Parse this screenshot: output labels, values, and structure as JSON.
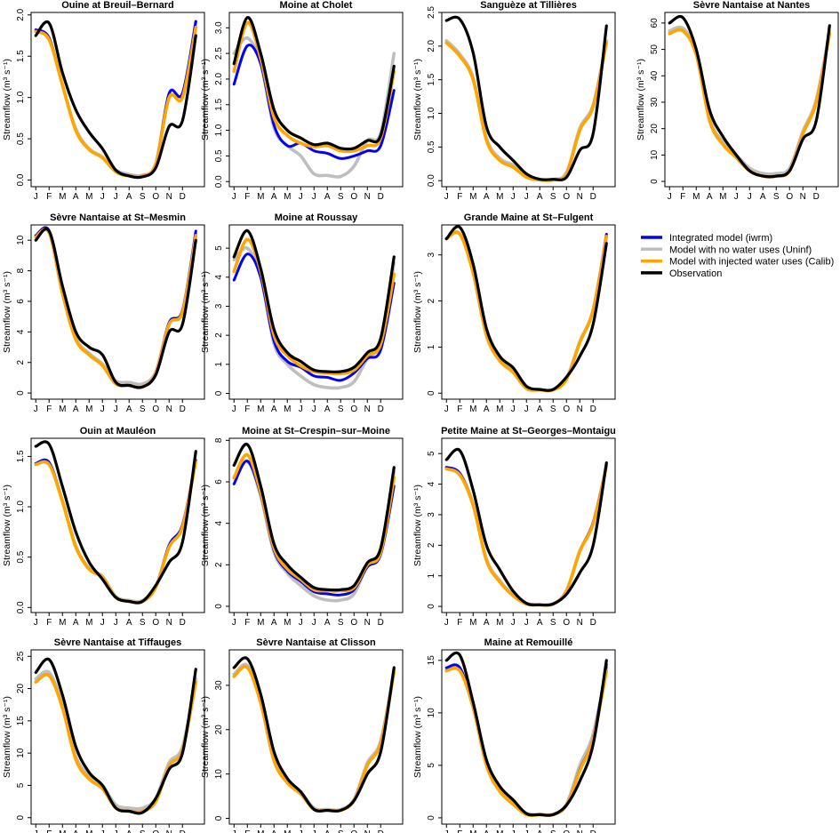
{
  "chart_data": {
    "type": "line",
    "ylabel": "Streamflow (m³ s⁻¹)",
    "xticklabels": [
      "J",
      "F",
      "M",
      "A",
      "M",
      "J",
      "J",
      "A",
      "S",
      "O",
      "N",
      "D"
    ],
    "x": [
      0,
      1,
      2,
      3,
      4,
      5,
      6,
      7,
      8,
      9,
      10,
      11,
      12
    ],
    "x_unit": "month (0 = 1 January, 12 = 31 December)",
    "legend": {
      "placement": "right, second row",
      "entries": [
        {
          "key": "iwrm",
          "label": "Integrated model (iwrm)",
          "color": "#0000ff"
        },
        {
          "key": "uninf",
          "label": "Model with no water uses (Uninf)",
          "color": "#bebebe"
        },
        {
          "key": "calib",
          "label": "Model with injected water uses (Calib)",
          "color": "#ffa500"
        },
        {
          "key": "obs",
          "label": "Observation",
          "color": "#000000"
        }
      ]
    },
    "panels": [
      {
        "title": "Ouine at Breuil–Bernard",
        "yticks": [
          0,
          0.5,
          1,
          1.5,
          2
        ],
        "ytickfmt": 1,
        "ylim": [
          -0.08,
          2.03
        ],
        "series": {
          "uninf": [
            1.82,
            1.72,
            1.15,
            0.62,
            0.38,
            0.28,
            0.12,
            0.07,
            0.06,
            0.2,
            1.05,
            1.05,
            1.92
          ],
          "iwrm": [
            1.82,
            1.72,
            1.15,
            0.6,
            0.37,
            0.27,
            0.1,
            0.05,
            0.05,
            0.2,
            1.05,
            1.05,
            1.92
          ],
          "calib": [
            1.8,
            1.7,
            1.15,
            0.6,
            0.37,
            0.27,
            0.1,
            0.05,
            0.05,
            0.2,
            1.0,
            1.0,
            1.85
          ],
          "obs": [
            1.75,
            1.9,
            1.3,
            0.85,
            0.58,
            0.38,
            0.12,
            0.05,
            0.04,
            0.15,
            0.65,
            0.72,
            1.75
          ]
        }
      },
      {
        "title": "Moine at Cholet",
        "yticks": [
          0,
          0.5,
          1,
          1.5,
          2,
          2.5,
          3
        ],
        "ytickfmt": 1,
        "ylim": [
          -0.1,
          3.3
        ],
        "series": {
          "uninf": [
            2.5,
            2.8,
            2.3,
            1.05,
            0.7,
            0.5,
            0.15,
            0.12,
            0.1,
            0.3,
            0.8,
            0.95,
            2.5
          ],
          "iwrm": [
            1.9,
            2.65,
            2.3,
            1.1,
            0.7,
            0.75,
            0.6,
            0.55,
            0.45,
            0.5,
            0.6,
            0.7,
            1.78
          ],
          "calib": [
            2.15,
            3.1,
            2.4,
            1.25,
            0.9,
            0.75,
            0.68,
            0.7,
            0.6,
            0.6,
            0.7,
            0.85,
            2.15
          ],
          "obs": [
            2.3,
            3.2,
            2.5,
            1.4,
            1.0,
            0.85,
            0.72,
            0.75,
            0.65,
            0.65,
            0.8,
            0.9,
            2.25
          ]
        }
      },
      {
        "title": "Sanguèze at Tillières",
        "yticks": [
          0,
          0.5,
          1,
          1.5,
          2,
          2.5
        ],
        "ytickfmt": 1,
        "ylim": [
          -0.09,
          2.5
        ],
        "series": {
          "uninf": [
            2.08,
            1.88,
            1.53,
            0.63,
            0.33,
            0.23,
            0.07,
            0.02,
            0.02,
            0.12,
            0.78,
            1.13,
            2.08
          ],
          "iwrm": [
            2.05,
            1.85,
            1.5,
            0.6,
            0.3,
            0.2,
            0.05,
            0.01,
            0.01,
            0.1,
            0.75,
            1.1,
            2.05
          ],
          "calib": [
            2.05,
            1.85,
            1.5,
            0.6,
            0.3,
            0.2,
            0.05,
            0.01,
            0.01,
            0.1,
            0.75,
            1.1,
            2.05
          ],
          "obs": [
            2.38,
            2.4,
            1.9,
            0.8,
            0.5,
            0.3,
            0.1,
            0.02,
            0.02,
            0.05,
            0.45,
            0.7,
            2.3
          ]
        }
      },
      {
        "title": "Sèvre Nantaise at Nantes",
        "yticks": [
          0,
          10,
          20,
          30,
          40,
          50,
          60
        ],
        "ytickfmt": 0,
        "ylim": [
          -2,
          64
        ],
        "series": {
          "uninf": [
            57,
            58,
            49,
            24,
            15,
            10,
            5,
            3,
            3,
            5,
            19,
            31,
            57
          ],
          "iwrm": [
            56,
            57,
            48,
            23,
            14,
            9,
            4,
            2,
            2,
            4,
            18,
            30,
            56
          ],
          "calib": [
            56,
            57,
            48,
            23,
            14,
            9,
            4,
            2,
            2,
            4,
            18,
            30,
            56
          ],
          "obs": [
            60,
            62,
            50,
            27,
            17,
            10,
            4,
            2,
            2,
            4,
            16,
            23,
            59
          ]
        }
      },
      {
        "title": "Sèvre Nantaise at St–Mesmin",
        "yticks": [
          0,
          2,
          4,
          6,
          8,
          10
        ],
        "ytickfmt": 0,
        "ylim": [
          -0.4,
          11
        ],
        "series": {
          "uninf": [
            10.3,
            10.6,
            6.6,
            3.6,
            2.6,
            1.9,
            0.8,
            0.7,
            0.6,
            1.4,
            4.6,
            5.4,
            10.4
          ],
          "iwrm": [
            10.3,
            10.6,
            6.5,
            3.5,
            2.5,
            1.8,
            0.6,
            0.5,
            0.4,
            1.3,
            4.6,
            5.4,
            10.6
          ],
          "calib": [
            10.2,
            10.5,
            6.5,
            3.5,
            2.5,
            1.8,
            0.6,
            0.5,
            0.4,
            1.3,
            4.5,
            5.3,
            10.3
          ],
          "obs": [
            10,
            10.6,
            7,
            4,
            3,
            2.5,
            0.7,
            0.5,
            0.4,
            1.2,
            4,
            4.5,
            10
          ]
        }
      },
      {
        "title": "Moine at Roussay",
        "yticks": [
          0,
          1,
          2,
          3,
          4,
          5
        ],
        "ytickfmt": 0,
        "ylim": [
          -0.2,
          5.8
        ],
        "series": {
          "uninf": [
            4.6,
            5.0,
            4.0,
            1.7,
            1.0,
            0.6,
            0.3,
            0.2,
            0.2,
            0.4,
            1.2,
            1.8,
            4.5
          ],
          "iwrm": [
            3.9,
            4.8,
            4.0,
            1.8,
            1.1,
            0.9,
            0.6,
            0.55,
            0.45,
            0.7,
            1.2,
            1.5,
            3.8
          ],
          "calib": [
            4.2,
            5.3,
            4.2,
            2.0,
            1.3,
            0.95,
            0.75,
            0.7,
            0.68,
            0.8,
            1.3,
            1.7,
            4.1
          ],
          "obs": [
            4.7,
            5.6,
            4.3,
            2.2,
            1.4,
            1.1,
            0.8,
            0.75,
            0.75,
            0.9,
            1.4,
            1.9,
            4.7
          ]
        }
      },
      {
        "title": "Grande Maine at St–Fulgent",
        "yticks": [
          0,
          1,
          2,
          3
        ],
        "ytickfmt": 0,
        "ylim": [
          -0.13,
          3.65
        ],
        "series": {
          "uninf": [
            3.36,
            3.46,
            2.62,
            1.27,
            0.72,
            0.47,
            0.12,
            0.08,
            0.08,
            0.32,
            1.12,
            1.82,
            3.42
          ],
          "iwrm": [
            3.35,
            3.45,
            2.6,
            1.25,
            0.7,
            0.45,
            0.1,
            0.07,
            0.07,
            0.3,
            1.1,
            1.8,
            3.45
          ],
          "calib": [
            3.35,
            3.45,
            2.6,
            1.25,
            0.7,
            0.45,
            0.1,
            0.07,
            0.07,
            0.3,
            1.1,
            1.8,
            3.4
          ],
          "obs": [
            3.35,
            3.6,
            2.8,
            1.4,
            0.8,
            0.55,
            0.15,
            0.08,
            0.08,
            0.35,
            0.8,
            1.5,
            3.25
          ]
        }
      },
      {
        "title": "Ouin at Mauléon",
        "yticks": [
          0,
          0.5,
          1,
          1.5
        ],
        "ytickfmt": 1,
        "ylim": [
          -0.05,
          1.68
        ],
        "series": {
          "uninf": [
            1.43,
            1.43,
            1.06,
            0.61,
            0.39,
            0.31,
            0.11,
            0.07,
            0.07,
            0.21,
            0.61,
            0.81,
            1.46
          ],
          "iwrm": [
            1.43,
            1.44,
            1.05,
            0.6,
            0.38,
            0.3,
            0.1,
            0.06,
            0.06,
            0.2,
            0.62,
            0.82,
            1.46
          ],
          "calib": [
            1.42,
            1.42,
            1.05,
            0.6,
            0.38,
            0.3,
            0.1,
            0.06,
            0.06,
            0.2,
            0.6,
            0.8,
            1.45
          ],
          "obs": [
            1.6,
            1.62,
            1.2,
            0.75,
            0.45,
            0.28,
            0.1,
            0.06,
            0.06,
            0.22,
            0.45,
            0.65,
            1.55
          ]
        }
      },
      {
        "title": "Moine at St–Crespin–sur–Moine",
        "yticks": [
          0,
          2,
          4,
          6,
          8
        ],
        "ytickfmt": 0,
        "ylim": [
          -0.3,
          8.1
        ],
        "series": {
          "uninf": [
            6.2,
            7.0,
            5.3,
            2.6,
            1.6,
            1.0,
            0.5,
            0.3,
            0.3,
            0.6,
            2.0,
            2.8,
            6.5
          ],
          "iwrm": [
            5.9,
            7.0,
            5.4,
            2.7,
            1.7,
            1.2,
            0.7,
            0.6,
            0.55,
            0.8,
            1.9,
            2.5,
            5.8
          ],
          "calib": [
            6.2,
            7.3,
            5.5,
            2.8,
            1.8,
            1.3,
            0.8,
            0.75,
            0.75,
            0.9,
            2.0,
            2.6,
            6.2
          ],
          "obs": [
            6.8,
            7.8,
            5.8,
            3.0,
            2.0,
            1.4,
            0.9,
            0.8,
            0.8,
            1.0,
            2.1,
            2.8,
            6.7
          ]
        }
      },
      {
        "title": "Petite Maine at St–Georges–Montaigu",
        "yticks": [
          0,
          1,
          2,
          3,
          4,
          5
        ],
        "ytickfmt": 0,
        "ylim": [
          -0.2,
          5.5
        ],
        "series": {
          "uninf": [
            4.55,
            4.35,
            3.35,
            1.55,
            0.85,
            0.38,
            0.1,
            0.06,
            0.09,
            0.52,
            1.82,
            2.72,
            4.62
          ],
          "iwrm": [
            4.55,
            4.35,
            3.3,
            1.5,
            0.8,
            0.35,
            0.08,
            0.05,
            0.08,
            0.5,
            1.8,
            2.75,
            4.6
          ],
          "calib": [
            4.5,
            4.3,
            3.3,
            1.5,
            0.8,
            0.35,
            0.08,
            0.05,
            0.08,
            0.5,
            1.8,
            2.7,
            4.6
          ],
          "obs": [
            4.8,
            5.1,
            3.8,
            2.0,
            1.2,
            0.5,
            0.1,
            0.05,
            0.08,
            0.4,
            1.1,
            2.0,
            4.7
          ]
        }
      },
      {
        "title": "Sèvre Nantaise at Tiffauges",
        "yticks": [
          0,
          5,
          10,
          15,
          20,
          25
        ],
        "ytickfmt": 0,
        "ylim": [
          -1,
          26
        ],
        "series": {
          "uninf": [
            21.5,
            22.5,
            17.5,
            9.5,
            6.5,
            5,
            2,
            1.5,
            1.5,
            3,
            8.5,
            11,
            21.5
          ],
          "iwrm": [
            21,
            22,
            17,
            9,
            6,
            4.5,
            1.5,
            1,
            1,
            2.5,
            8,
            10.5,
            21
          ],
          "calib": [
            21,
            22,
            17,
            9,
            6,
            4.5,
            1.5,
            1,
            1,
            2.5,
            8,
            10.5,
            21
          ],
          "obs": [
            22.5,
            24.5,
            19,
            11,
            7,
            5,
            1.5,
            1,
            0.8,
            3,
            7.5,
            10,
            23
          ]
        }
      },
      {
        "title": "Sèvre Nantaise at Clisson",
        "yticks": [
          0,
          10,
          20,
          30
        ],
        "ytickfmt": 0,
        "ylim": [
          -1.3,
          38
        ],
        "series": {
          "uninf": [
            32.5,
            34.5,
            26.5,
            13.5,
            8.5,
            6,
            2.3,
            2,
            2,
            4.3,
            12.5,
            17.5,
            33.5
          ],
          "iwrm": [
            32,
            34,
            26,
            13,
            8,
            5.5,
            2,
            1.8,
            1.8,
            4,
            12,
            17,
            33
          ],
          "calib": [
            32,
            34,
            26,
            13,
            8,
            5.5,
            2,
            1.8,
            1.8,
            4,
            12,
            17,
            33
          ],
          "obs": [
            34,
            36,
            28,
            15,
            9,
            6,
            2,
            1.8,
            1.8,
            4,
            10,
            15,
            34
          ]
        }
      },
      {
        "title": "Maine at Remouillé",
        "yticks": [
          0,
          5,
          10,
          15
        ],
        "ytickfmt": 0,
        "ylim": [
          -0.6,
          16
        ],
        "series": {
          "uninf": [
            14.2,
            14.2,
            10.6,
            5.1,
            2.6,
            1.4,
            0.4,
            0.35,
            0.35,
            1.3,
            5.0,
            8.0,
            14.3
          ],
          "iwrm": [
            14.3,
            14.3,
            10.5,
            5,
            2.5,
            1.3,
            0.3,
            0.3,
            0.3,
            1.2,
            4.6,
            7.6,
            14.6
          ],
          "calib": [
            14,
            14,
            10.5,
            5,
            2.5,
            1.3,
            0.3,
            0.3,
            0.3,
            1.2,
            4.5,
            7.5,
            14
          ],
          "obs": [
            15,
            15.5,
            11,
            5.5,
            3,
            1.7,
            0.4,
            0.3,
            0.3,
            1.2,
            3.5,
            7,
            15
          ]
        }
      }
    ]
  }
}
